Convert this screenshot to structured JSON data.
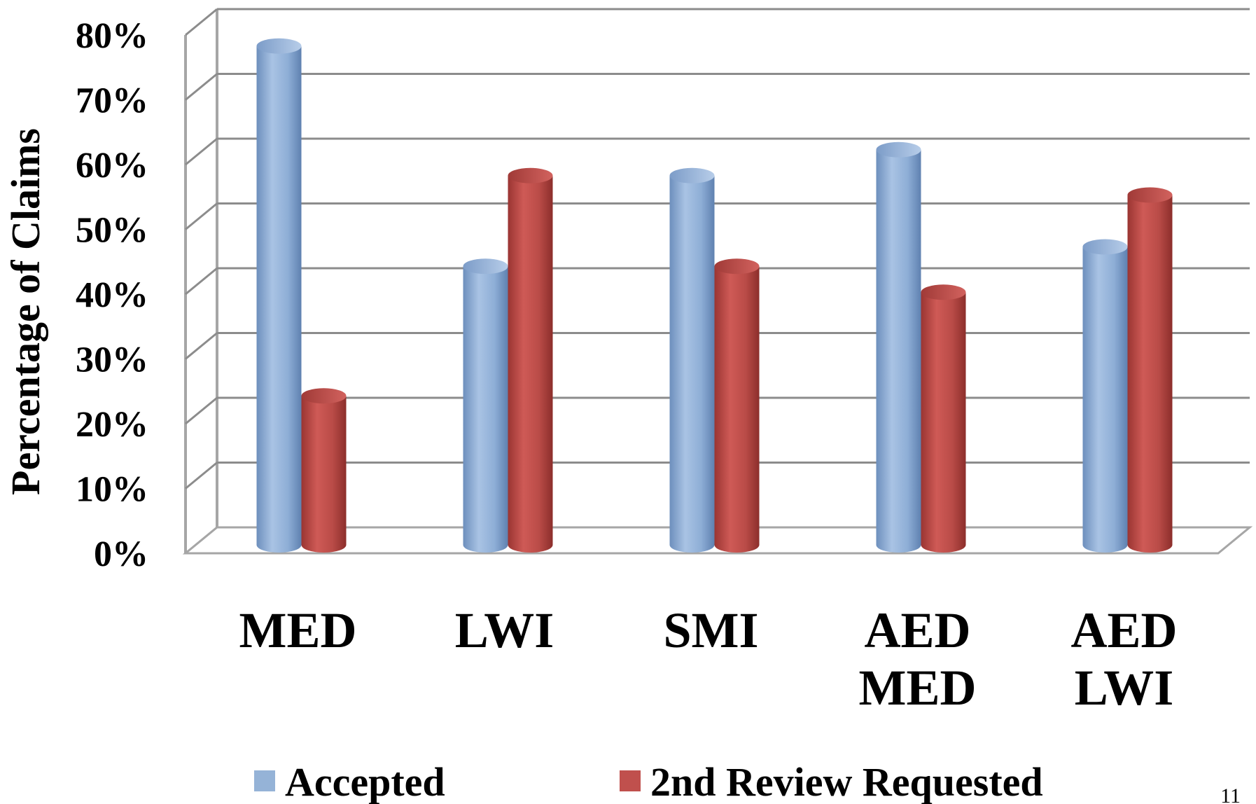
{
  "chart_data": {
    "type": "bar",
    "ylabel": "Percentage of Claims",
    "xlabel": "",
    "ylim": [
      0,
      80
    ],
    "yticks": [
      "0%",
      "10%",
      "20%",
      "30%",
      "40%",
      "50%",
      "60%",
      "70%",
      "80%"
    ],
    "grid": true,
    "categories": [
      [
        "MED"
      ],
      [
        "LWI"
      ],
      [
        "SMI"
      ],
      [
        "AED",
        "MED"
      ],
      [
        "AED",
        "LWI"
      ]
    ],
    "series": [
      {
        "name": "Accepted",
        "color": "#95b3d7",
        "values": [
          77,
          43,
          57,
          61,
          46
        ]
      },
      {
        "name": "2nd Review Requested",
        "color": "#c0504d",
        "values": [
          23,
          57,
          43,
          39,
          54
        ]
      }
    ],
    "legend_position": "bottom"
  },
  "page_number": "11"
}
